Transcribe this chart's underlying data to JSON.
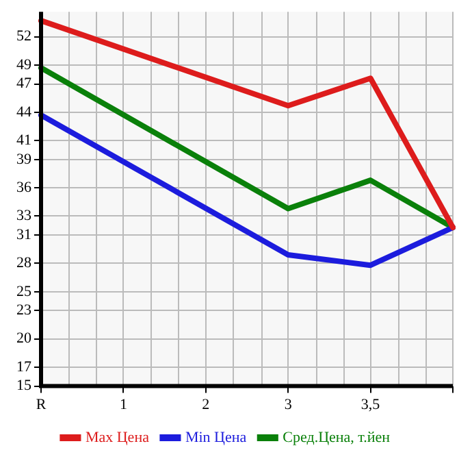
{
  "chart_data": {
    "type": "line",
    "categories": [
      "R",
      "1",
      "2",
      "3",
      "3,5",
      null
    ],
    "series": [
      {
        "name": "Max Цена",
        "color": "#dd1c1c",
        "values": [
          53.7,
          null,
          null,
          44.7,
          47.6,
          31.8
        ]
      },
      {
        "name": "Min Цена",
        "color": "#1c1cdd",
        "values": [
          43.7,
          null,
          null,
          28.9,
          27.8,
          31.8
        ]
      },
      {
        "name": "Сред.Цена, т.йен",
        "color": "#0a800a",
        "values": [
          48.7,
          null,
          null,
          33.8,
          36.8,
          31.8
        ]
      }
    ],
    "ylim": [
      15,
      54.64
    ],
    "yticks": [
      15,
      17,
      20,
      23,
      25,
      28,
      31,
      33,
      36,
      39,
      41,
      44,
      47,
      49,
      52
    ],
    "grid": true,
    "legend": "bottom",
    "marker": "none",
    "line_style": "solid"
  }
}
